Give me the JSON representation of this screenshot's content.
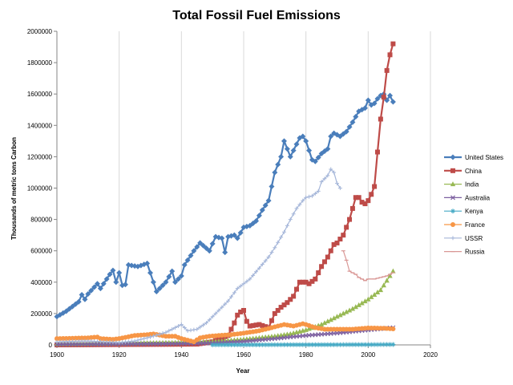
{
  "chart_data": {
    "type": "line",
    "title": "Total Fossil Fuel Emissions",
    "xlabel": "Year",
    "ylabel": "Thousands of metric tons Carbon",
    "xlim": [
      1900,
      2020
    ],
    "ylim": [
      0,
      2000000
    ],
    "x_ticks": [
      1900,
      1920,
      1940,
      1960,
      1980,
      2000,
      2020
    ],
    "y_ticks": [
      0,
      200000,
      400000,
      600000,
      800000,
      1000000,
      1200000,
      1400000,
      1600000,
      1800000,
      2000000
    ],
    "grid": "vertical",
    "legend": "right",
    "series": [
      {
        "name": "United States",
        "color": "#4a7ebb",
        "marker": "diamond",
        "anchors": [
          [
            1900,
            180000
          ],
          [
            1903,
            215000
          ],
          [
            1905,
            245000
          ],
          [
            1907,
            275000
          ],
          [
            1908,
            320000
          ],
          [
            1909,
            290000
          ],
          [
            1910,
            325000
          ],
          [
            1913,
            390000
          ],
          [
            1914,
            360000
          ],
          [
            1917,
            450000
          ],
          [
            1918,
            475000
          ],
          [
            1919,
            400000
          ],
          [
            1920,
            460000
          ],
          [
            1921,
            380000
          ],
          [
            1922,
            385000
          ],
          [
            1923,
            510000
          ],
          [
            1926,
            500000
          ],
          [
            1929,
            520000
          ],
          [
            1930,
            460000
          ],
          [
            1931,
            400000
          ],
          [
            1932,
            340000
          ],
          [
            1933,
            360000
          ],
          [
            1935,
            400000
          ],
          [
            1937,
            470000
          ],
          [
            1938,
            400000
          ],
          [
            1940,
            440000
          ],
          [
            1941,
            510000
          ],
          [
            1944,
            600000
          ],
          [
            1946,
            650000
          ],
          [
            1949,
            600000
          ],
          [
            1951,
            690000
          ],
          [
            1953,
            680000
          ],
          [
            1954,
            590000
          ],
          [
            1955,
            690000
          ],
          [
            1957,
            700000
          ],
          [
            1958,
            680000
          ],
          [
            1960,
            750000
          ],
          [
            1962,
            760000
          ],
          [
            1964,
            790000
          ],
          [
            1966,
            860000
          ],
          [
            1968,
            920000
          ],
          [
            1970,
            1100000
          ],
          [
            1972,
            1200000
          ],
          [
            1973,
            1300000
          ],
          [
            1974,
            1250000
          ],
          [
            1975,
            1200000
          ],
          [
            1977,
            1280000
          ],
          [
            1978,
            1320000
          ],
          [
            1979,
            1330000
          ],
          [
            1980,
            1300000
          ],
          [
            1982,
            1180000
          ],
          [
            1983,
            1170000
          ],
          [
            1985,
            1220000
          ],
          [
            1987,
            1250000
          ],
          [
            1988,
            1330000
          ],
          [
            1989,
            1350000
          ],
          [
            1990,
            1340000
          ],
          [
            1991,
            1330000
          ],
          [
            1993,
            1360000
          ],
          [
            1995,
            1420000
          ],
          [
            1997,
            1490000
          ],
          [
            1999,
            1510000
          ],
          [
            2000,
            1560000
          ],
          [
            2001,
            1530000
          ],
          [
            2002,
            1540000
          ],
          [
            2003,
            1570000
          ],
          [
            2004,
            1590000
          ],
          [
            2005,
            1600000
          ],
          [
            2006,
            1560000
          ],
          [
            2007,
            1590000
          ],
          [
            2008,
            1550000
          ]
        ]
      },
      {
        "name": "China",
        "color": "#be4b48",
        "marker": "square",
        "anchors": [
          [
            1900,
            0
          ],
          [
            1945,
            5000
          ],
          [
            1950,
            20000
          ],
          [
            1955,
            60000
          ],
          [
            1957,
            140000
          ],
          [
            1958,
            190000
          ],
          [
            1959,
            210000
          ],
          [
            1960,
            220000
          ],
          [
            1961,
            150000
          ],
          [
            1962,
            120000
          ],
          [
            1965,
            130000
          ],
          [
            1968,
            110000
          ],
          [
            1970,
            200000
          ],
          [
            1972,
            240000
          ],
          [
            1974,
            270000
          ],
          [
            1976,
            310000
          ],
          [
            1978,
            400000
          ],
          [
            1980,
            400000
          ],
          [
            1981,
            390000
          ],
          [
            1983,
            420000
          ],
          [
            1985,
            500000
          ],
          [
            1987,
            560000
          ],
          [
            1989,
            640000
          ],
          [
            1990,
            650000
          ],
          [
            1992,
            700000
          ],
          [
            1994,
            800000
          ],
          [
            1996,
            940000
          ],
          [
            1997,
            940000
          ],
          [
            1998,
            910000
          ],
          [
            1999,
            900000
          ],
          [
            2000,
            920000
          ],
          [
            2001,
            960000
          ],
          [
            2002,
            1010000
          ],
          [
            2003,
            1230000
          ],
          [
            2004,
            1440000
          ],
          [
            2005,
            1580000
          ],
          [
            2006,
            1750000
          ],
          [
            2007,
            1850000
          ],
          [
            2008,
            1920000
          ]
        ]
      },
      {
        "name": "India",
        "color": "#98b954",
        "marker": "triangle",
        "anchors": [
          [
            1900,
            5000
          ],
          [
            1920,
            10000
          ],
          [
            1940,
            15000
          ],
          [
            1950,
            20000
          ],
          [
            1960,
            35000
          ],
          [
            1970,
            55000
          ],
          [
            1975,
            70000
          ],
          [
            1980,
            95000
          ],
          [
            1985,
            130000
          ],
          [
            1990,
            180000
          ],
          [
            1995,
            230000
          ],
          [
            2000,
            290000
          ],
          [
            2002,
            320000
          ],
          [
            2004,
            350000
          ],
          [
            2006,
            410000
          ],
          [
            2008,
            470000
          ]
        ]
      },
      {
        "name": "Australia",
        "color": "#7d60a0",
        "marker": "x",
        "anchors": [
          [
            1900,
            3000
          ],
          [
            1920,
            5000
          ],
          [
            1940,
            8000
          ],
          [
            1950,
            12000
          ],
          [
            1960,
            22000
          ],
          [
            1970,
            40000
          ],
          [
            1980,
            60000
          ],
          [
            1990,
            75000
          ],
          [
            2000,
            95000
          ],
          [
            2008,
            110000
          ]
        ]
      },
      {
        "name": "Kenya",
        "color": "#46aac5",
        "marker": "star",
        "anchors": [
          [
            1950,
            300
          ],
          [
            1970,
            1000
          ],
          [
            1990,
            1500
          ],
          [
            2008,
            2500
          ]
        ]
      },
      {
        "name": "France",
        "color": "#f79646",
        "marker": "circle",
        "anchors": [
          [
            1900,
            40000
          ],
          [
            1905,
            42000
          ],
          [
            1910,
            45000
          ],
          [
            1913,
            50000
          ],
          [
            1914,
            40000
          ],
          [
            1918,
            35000
          ],
          [
            1920,
            40000
          ],
          [
            1925,
            60000
          ],
          [
            1929,
            65000
          ],
          [
            1931,
            70000
          ],
          [
            1935,
            55000
          ],
          [
            1938,
            55000
          ],
          [
            1940,
            40000
          ],
          [
            1944,
            20000
          ],
          [
            1946,
            45000
          ],
          [
            1949,
            55000
          ],
          [
            1952,
            60000
          ],
          [
            1956,
            65000
          ],
          [
            1960,
            75000
          ],
          [
            1965,
            90000
          ],
          [
            1970,
            115000
          ],
          [
            1973,
            130000
          ],
          [
            1976,
            120000
          ],
          [
            1979,
            135000
          ],
          [
            1980,
            130000
          ],
          [
            1983,
            110000
          ],
          [
            1986,
            100000
          ],
          [
            1990,
            100000
          ],
          [
            1995,
            100000
          ],
          [
            2000,
            108000
          ],
          [
            2005,
            106000
          ],
          [
            2008,
            102000
          ]
        ]
      },
      {
        "name": "USSR",
        "color": "#a5b6d9",
        "marker": "plus",
        "anchors": [
          [
            1900,
            20000
          ],
          [
            1910,
            25000
          ],
          [
            1920,
            15000
          ],
          [
            1925,
            25000
          ],
          [
            1930,
            50000
          ],
          [
            1935,
            80000
          ],
          [
            1938,
            110000
          ],
          [
            1940,
            130000
          ],
          [
            1942,
            90000
          ],
          [
            1945,
            100000
          ],
          [
            1948,
            140000
          ],
          [
            1950,
            180000
          ],
          [
            1955,
            280000
          ],
          [
            1958,
            360000
          ],
          [
            1960,
            390000
          ],
          [
            1962,
            420000
          ],
          [
            1965,
            490000
          ],
          [
            1968,
            560000
          ],
          [
            1970,
            620000
          ],
          [
            1973,
            720000
          ],
          [
            1975,
            800000
          ],
          [
            1977,
            870000
          ],
          [
            1979,
            920000
          ],
          [
            1980,
            940000
          ],
          [
            1982,
            950000
          ],
          [
            1984,
            980000
          ],
          [
            1985,
            1040000
          ],
          [
            1987,
            1080000
          ],
          [
            1988,
            1120000
          ],
          [
            1989,
            1100000
          ],
          [
            1990,
            1030000
          ],
          [
            1991,
            1000000
          ]
        ]
      },
      {
        "name": "Russia",
        "color": "#d99795",
        "marker": "dash",
        "anchors": [
          [
            1992,
            600000
          ],
          [
            1993,
            540000
          ],
          [
            1994,
            470000
          ],
          [
            1996,
            450000
          ],
          [
            1997,
            430000
          ],
          [
            1998,
            420000
          ],
          [
            1999,
            410000
          ],
          [
            2000,
            420000
          ],
          [
            2002,
            420000
          ],
          [
            2004,
            430000
          ],
          [
            2006,
            440000
          ],
          [
            2008,
            460000
          ]
        ]
      }
    ]
  }
}
